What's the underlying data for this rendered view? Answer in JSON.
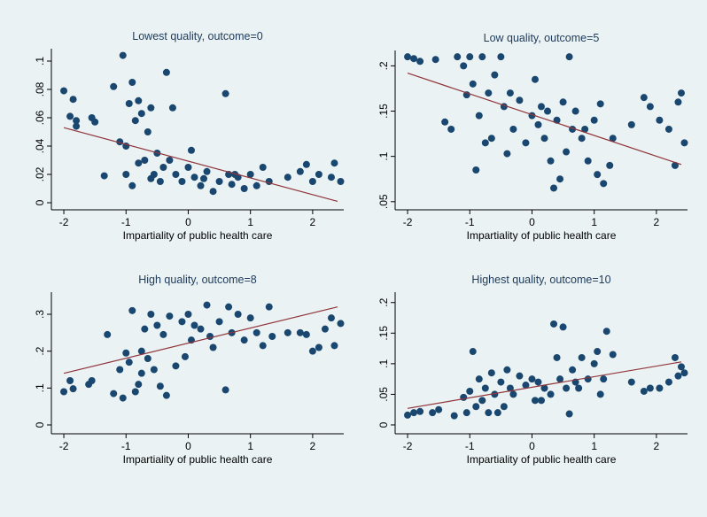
{
  "chart_data": [
    {
      "type": "scatter",
      "title": "Lowest quality, outcome=0",
      "x_label": "Impartiality of public health care",
      "xlim": [
        -2.2,
        2.5
      ],
      "ylim": [
        -0.005,
        0.10875
      ],
      "xticks": [
        -2,
        -1,
        0,
        1,
        2
      ],
      "yticks": [
        0,
        {
          "value": 0.02,
          "label": ".02"
        },
        {
          "value": 0.04,
          "label": ".04"
        },
        {
          "value": 0.06,
          "label": ".06"
        },
        {
          "value": 0.08,
          "label": ".08"
        },
        {
          "value": 0.1,
          "label": ".1"
        }
      ],
      "color": "#1a476f",
      "x": [
        -2,
        -1.9,
        -1.85,
        -1.8,
        -1.8,
        -1.55,
        -1.5,
        -1.35,
        -1.2,
        -1.1,
        -1.05,
        -1,
        -1,
        -0.95,
        -0.9,
        -0.85,
        -0.8,
        -0.8,
        -0.75,
        -0.7,
        -0.65,
        -0.6,
        -0.55,
        -0.5,
        -0.45,
        -0.4,
        -0.35,
        -0.3,
        -0.25,
        -0.2,
        -0.1,
        0,
        0.05,
        0.1,
        0.2,
        0.3,
        0.4,
        0.5,
        0.6,
        0.65,
        0.7,
        0.8,
        0.9,
        1.0,
        1.1,
        1.2,
        1.3,
        1.6,
        1.8,
        1.9,
        2.0,
        2.1,
        2.3,
        2.35,
        2.45,
        -0.9,
        -0.6,
        0.25,
        0.75
      ],
      "values": [
        0.079,
        0.061,
        0.073,
        0.058,
        0.054,
        0.06,
        0.057,
        0.019,
        0.082,
        0.043,
        0.104,
        0.04,
        0.02,
        0.07,
        0.085,
        0.058,
        0.028,
        0.072,
        0.063,
        0.03,
        0.05,
        0.067,
        0.02,
        0.035,
        0.015,
        0.025,
        0.092,
        0.03,
        0.067,
        0.02,
        0.015,
        0.025,
        0.037,
        0.018,
        0.012,
        0.022,
        0.008,
        0.015,
        0.077,
        0.02,
        0.013,
        0.018,
        0.01,
        0.02,
        0.012,
        0.025,
        0.015,
        0.018,
        0.022,
        0.027,
        0.015,
        0.02,
        0.018,
        0.028,
        0.015,
        0.012,
        0.017,
        0.017,
        0.02
      ],
      "fit": {
        "x": [
          -2,
          2.4
        ],
        "values": [
          0.053,
          0.001
        ],
        "color": "#90353b"
      }
    },
    {
      "type": "scatter",
      "title": "Low quality, outcome=5",
      "x_label": "Impartiality of public health care",
      "xlim": [
        -2.2,
        2.5
      ],
      "ylim": [
        0.041,
        0.217
      ],
      "xticks": [
        -2,
        -1,
        0,
        1,
        2
      ],
      "yticks": [
        {
          "value": 0.05,
          "label": ".05"
        },
        {
          "value": 0.1,
          "label": ".1"
        },
        {
          "value": 0.15,
          "label": ".15"
        },
        {
          "value": 0.2,
          "label": ".2"
        }
      ],
      "color": "#1a476f",
      "x": [
        -2,
        -1.9,
        -1.8,
        -1.55,
        -1.4,
        -1.2,
        -1.1,
        -1.05,
        -1,
        -0.95,
        -0.9,
        -0.85,
        -0.8,
        -0.7,
        -0.65,
        -0.6,
        -0.5,
        -0.45,
        -0.4,
        -0.35,
        -0.3,
        -0.2,
        -0.1,
        0,
        0.05,
        0.1,
        0.15,
        0.2,
        0.3,
        0.35,
        0.4,
        0.45,
        0.5,
        0.55,
        0.6,
        0.65,
        0.7,
        0.8,
        0.9,
        1,
        1.05,
        1.1,
        1.15,
        1.25,
        1.3,
        1.6,
        1.8,
        1.9,
        2.05,
        2.2,
        2.3,
        2.35,
        2.4,
        2.45,
        -1.3,
        -0.75,
        0.25,
        0.85
      ],
      "values": [
        0.21,
        0.208,
        0.205,
        0.207,
        0.138,
        0.21,
        0.2,
        0.168,
        0.21,
        0.18,
        0.085,
        0.145,
        0.21,
        0.17,
        0.12,
        0.19,
        0.21,
        0.155,
        0.103,
        0.17,
        0.13,
        0.162,
        0.115,
        0.145,
        0.185,
        0.135,
        0.155,
        0.12,
        0.095,
        0.065,
        0.14,
        0.075,
        0.16,
        0.105,
        0.21,
        0.13,
        0.15,
        0.12,
        0.095,
        0.14,
        0.08,
        0.158,
        0.07,
        0.09,
        0.12,
        0.135,
        0.165,
        0.155,
        0.14,
        0.13,
        0.09,
        0.16,
        0.17,
        0.115,
        0.13,
        0.115,
        0.15,
        0.13
      ],
      "fit": {
        "x": [
          -2,
          2.4
        ],
        "values": [
          0.192,
          0.091
        ],
        "color": "#90353b"
      }
    },
    {
      "type": "scatter",
      "title": "High quality, outcome=8",
      "x_label": "Impartiality of public health care",
      "xlim": [
        -2.2,
        2.5
      ],
      "ylim": [
        -0.024,
        0.36
      ],
      "xticks": [
        -2,
        -1,
        0,
        1,
        2
      ],
      "yticks": [
        0,
        {
          "value": 0.1,
          "label": ".1"
        },
        {
          "value": 0.2,
          "label": ".2"
        },
        {
          "value": 0.3,
          "label": ".3"
        }
      ],
      "color": "#1a476f",
      "x": [
        -2,
        -1.9,
        -1.85,
        -1.6,
        -1.55,
        -1.3,
        -1.2,
        -1.1,
        -1.05,
        -1,
        -0.95,
        -0.9,
        -0.85,
        -0.8,
        -0.75,
        -0.7,
        -0.65,
        -0.6,
        -0.55,
        -0.5,
        -0.45,
        -0.4,
        -0.35,
        -0.3,
        -0.2,
        -0.1,
        0,
        0.05,
        0.1,
        0.2,
        0.3,
        0.4,
        0.5,
        0.6,
        0.65,
        0.7,
        0.8,
        0.9,
        1,
        1.1,
        1.2,
        1.3,
        1.35,
        1.6,
        1.8,
        1.9,
        2.0,
        2.1,
        2.2,
        2.3,
        2.35,
        2.45,
        -0.05,
        0.35,
        -0.75
      ],
      "values": [
        0.09,
        0.12,
        0.098,
        0.11,
        0.12,
        0.245,
        0.085,
        0.15,
        0.073,
        0.195,
        0.17,
        0.31,
        0.09,
        0.11,
        0.2,
        0.26,
        0.18,
        0.3,
        0.15,
        0.27,
        0.105,
        0.245,
        0.08,
        0.295,
        0.16,
        0.28,
        0.3,
        0.23,
        0.27,
        0.26,
        0.325,
        0.21,
        0.28,
        0.095,
        0.32,
        0.25,
        0.3,
        0.23,
        0.29,
        0.25,
        0.215,
        0.32,
        0.24,
        0.25,
        0.25,
        0.245,
        0.2,
        0.21,
        0.26,
        0.29,
        0.215,
        0.275,
        0.185,
        0.24,
        0.14
      ],
      "fit": {
        "x": [
          -2,
          2.4
        ],
        "values": [
          0.14,
          0.32
        ],
        "color": "#90353b"
      }
    },
    {
      "type": "scatter",
      "title": "Highest quality, outcome=10",
      "x_label": "Impartiality of public health care",
      "xlim": [
        -2.2,
        2.5
      ],
      "ylim": [
        -0.0145,
        0.217
      ],
      "xticks": [
        -2,
        -1,
        0,
        1,
        2
      ],
      "yticks": [
        0,
        {
          "value": 0.05,
          "label": ".05"
        },
        {
          "value": 0.1,
          "label": ".1"
        },
        {
          "value": 0.15,
          "label": ".15"
        },
        {
          "value": 0.2,
          "label": ".2"
        }
      ],
      "color": "#1a476f",
      "x": [
        -2,
        -1.9,
        -1.8,
        -1.6,
        -1.5,
        -1.25,
        -1.1,
        -1.05,
        -1,
        -0.95,
        -0.9,
        -0.85,
        -0.8,
        -0.75,
        -0.7,
        -0.65,
        -0.6,
        -0.5,
        -0.45,
        -0.4,
        -0.35,
        -0.3,
        -0.2,
        -0.1,
        0,
        0.05,
        0.1,
        0.2,
        0.3,
        0.35,
        0.4,
        0.45,
        0.5,
        0.55,
        0.6,
        0.65,
        0.7,
        0.8,
        0.9,
        1,
        1.05,
        1.1,
        1.15,
        1.2,
        1.3,
        1.6,
        1.8,
        1.9,
        2.05,
        2.2,
        2.3,
        2.35,
        2.4,
        2.45,
        -0.55,
        0.15,
        0.75
      ],
      "values": [
        0.016,
        0.02,
        0.022,
        0.02,
        0.025,
        0.015,
        0.045,
        0.02,
        0.055,
        0.12,
        0.03,
        0.075,
        0.04,
        0.06,
        0.02,
        0.085,
        0.05,
        0.07,
        0.03,
        0.09,
        0.06,
        0.05,
        0.08,
        0.065,
        0.075,
        0.04,
        0.07,
        0.06,
        0.05,
        0.165,
        0.11,
        0.075,
        0.16,
        0.06,
        0.018,
        0.09,
        0.07,
        0.11,
        0.075,
        0.1,
        0.12,
        0.05,
        0.075,
        0.153,
        0.115,
        0.07,
        0.055,
        0.06,
        0.06,
        0.07,
        0.11,
        0.08,
        0.095,
        0.085,
        0.02,
        0.04,
        0.06
      ],
      "fit": {
        "x": [
          -2,
          2.4
        ],
        "values": [
          0.027,
          0.103
        ],
        "color": "#90353b"
      }
    }
  ]
}
